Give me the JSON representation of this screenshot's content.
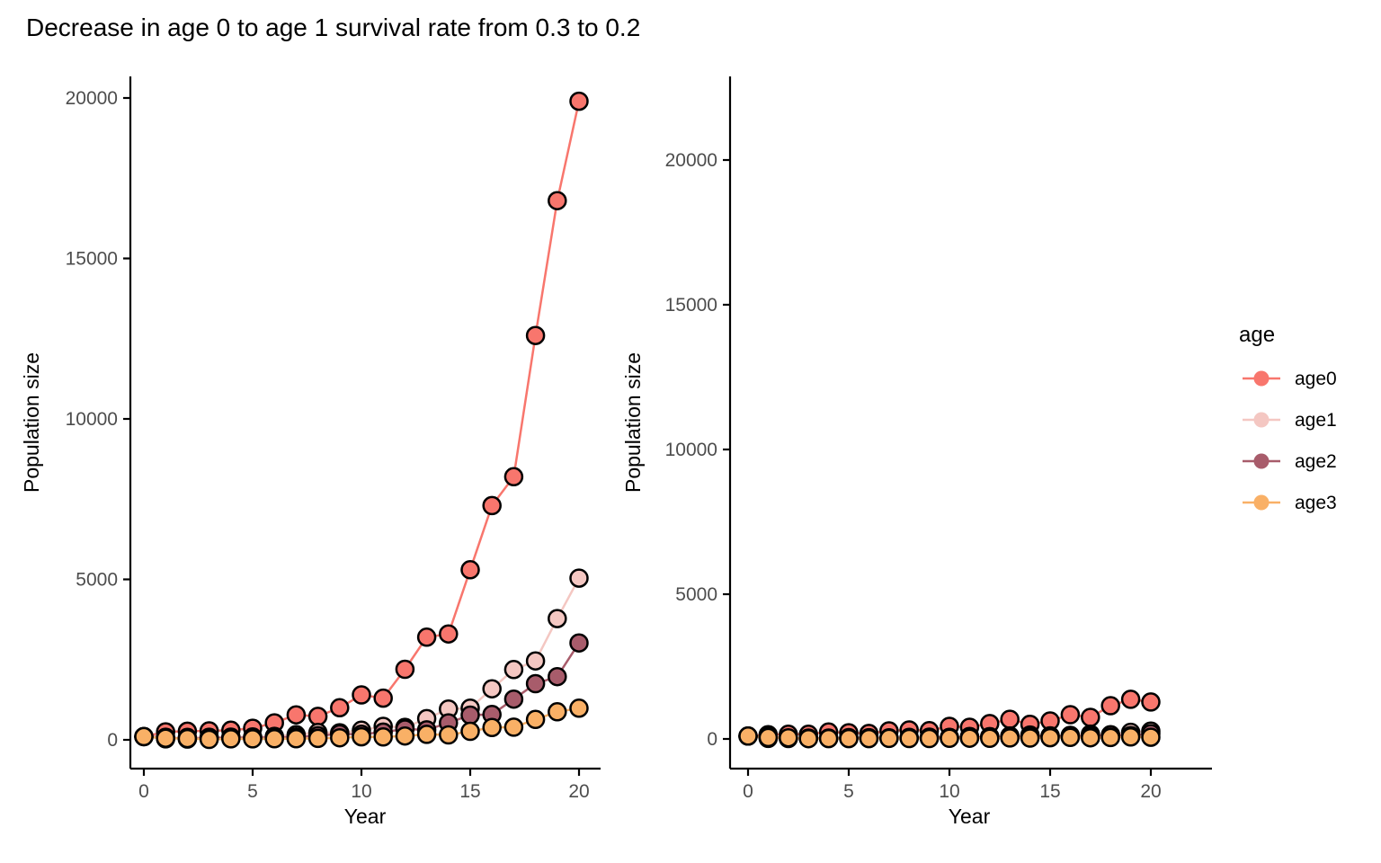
{
  "title": "Decrease in age 0 to age 1 survival rate from 0.3 to 0.2",
  "chart_data": {
    "type": "line",
    "title": "Decrease in age 0 to age 1 survival rate from 0.3 to 0.2",
    "xlabel": "Year",
    "ylabel": "Population size",
    "years": [
      0,
      1,
      2,
      3,
      4,
      5,
      6,
      7,
      8,
      9,
      10,
      11,
      12,
      13,
      14,
      15,
      16,
      17,
      18,
      19,
      20
    ],
    "x_ticks": [
      0,
      5,
      10,
      15,
      20
    ],
    "y_ticks": [
      0,
      5000,
      10000,
      15000,
      20000
    ],
    "grid": false,
    "background": "#FFFFFF",
    "axis_line_color": "#000000",
    "axis_text_color": "#4D4D4D",
    "point_outline_color": "#000000",
    "legend": {
      "title": "age",
      "position": "right",
      "entries": [
        {
          "label": "age0",
          "color": "#F8766D"
        },
        {
          "label": "age1",
          "color": "#F4C7C2"
        },
        {
          "label": "age2",
          "color": "#A85C6B"
        },
        {
          "label": "age3",
          "color": "#F9B066"
        }
      ]
    },
    "panels": [
      {
        "name": "left-panel-survival-0.3",
        "ylim": [
          0,
          20700
        ],
        "series": [
          {
            "name": "age0",
            "color": "#F8766D",
            "values": [
              100,
              250,
              270,
              280,
              300,
              360,
              530,
              780,
              730,
              1000,
              1400,
              1300,
              2200,
              3200,
              3300,
              5300,
              7300,
              8200,
              12600,
              16800,
              19900
            ]
          },
          {
            "name": "age1",
            "color": "#F4C7C2",
            "values": [
              100,
              30,
              75,
              80,
              85,
              90,
              110,
              160,
              230,
              220,
              300,
              420,
              390,
              660,
              960,
              990,
              1590,
              2190,
              2460,
              3780,
              5040
            ]
          },
          {
            "name": "age2",
            "color": "#A85C6B",
            "values": [
              100,
              80,
              25,
              60,
              65,
              70,
              70,
              90,
              130,
              185,
              175,
              240,
              335,
              310,
              530,
              770,
              790,
              1270,
              1750,
              1970,
              3020
            ]
          },
          {
            "name": "age3",
            "color": "#F9B066",
            "values": [
              100,
              50,
              40,
              15,
              30,
              30,
              35,
              35,
              45,
              65,
              95,
              90,
              120,
              170,
              155,
              265,
              385,
              395,
              635,
              875,
              985
            ]
          }
        ]
      },
      {
        "name": "right-panel-survival-0.2",
        "ylim": [
          0,
          22700
        ],
        "series": [
          {
            "name": "age0",
            "color": "#F8766D",
            "values": [
              100,
              150,
              160,
              160,
              240,
              215,
              190,
              280,
              310,
              285,
              435,
              405,
              530,
              680,
              505,
              620,
              840,
              745,
              1150,
              1370,
              1275
            ]
          },
          {
            "name": "age1",
            "color": "#F4C7C2",
            "values": [
              100,
              20,
              30,
              32,
              32,
              48,
              43,
              38,
              56,
              62,
              57,
              87,
              81,
              106,
              136,
              101,
              124,
              168,
              149,
              230,
              274
            ]
          },
          {
            "name": "age2",
            "color": "#A85C6B",
            "values": [
              100,
              80,
              16,
              24,
              26,
              26,
              38,
              34,
              30,
              45,
              50,
              46,
              70,
              65,
              85,
              109,
              81,
              99,
              134,
              119,
              184
            ]
          },
          {
            "name": "age3",
            "color": "#F9B066",
            "values": [
              100,
              50,
              40,
              8,
              12,
              13,
              13,
              19,
              17,
              15,
              22,
              25,
              23,
              35,
              32,
              42,
              54,
              40,
              50,
              67,
              60
            ]
          }
        ]
      }
    ]
  }
}
